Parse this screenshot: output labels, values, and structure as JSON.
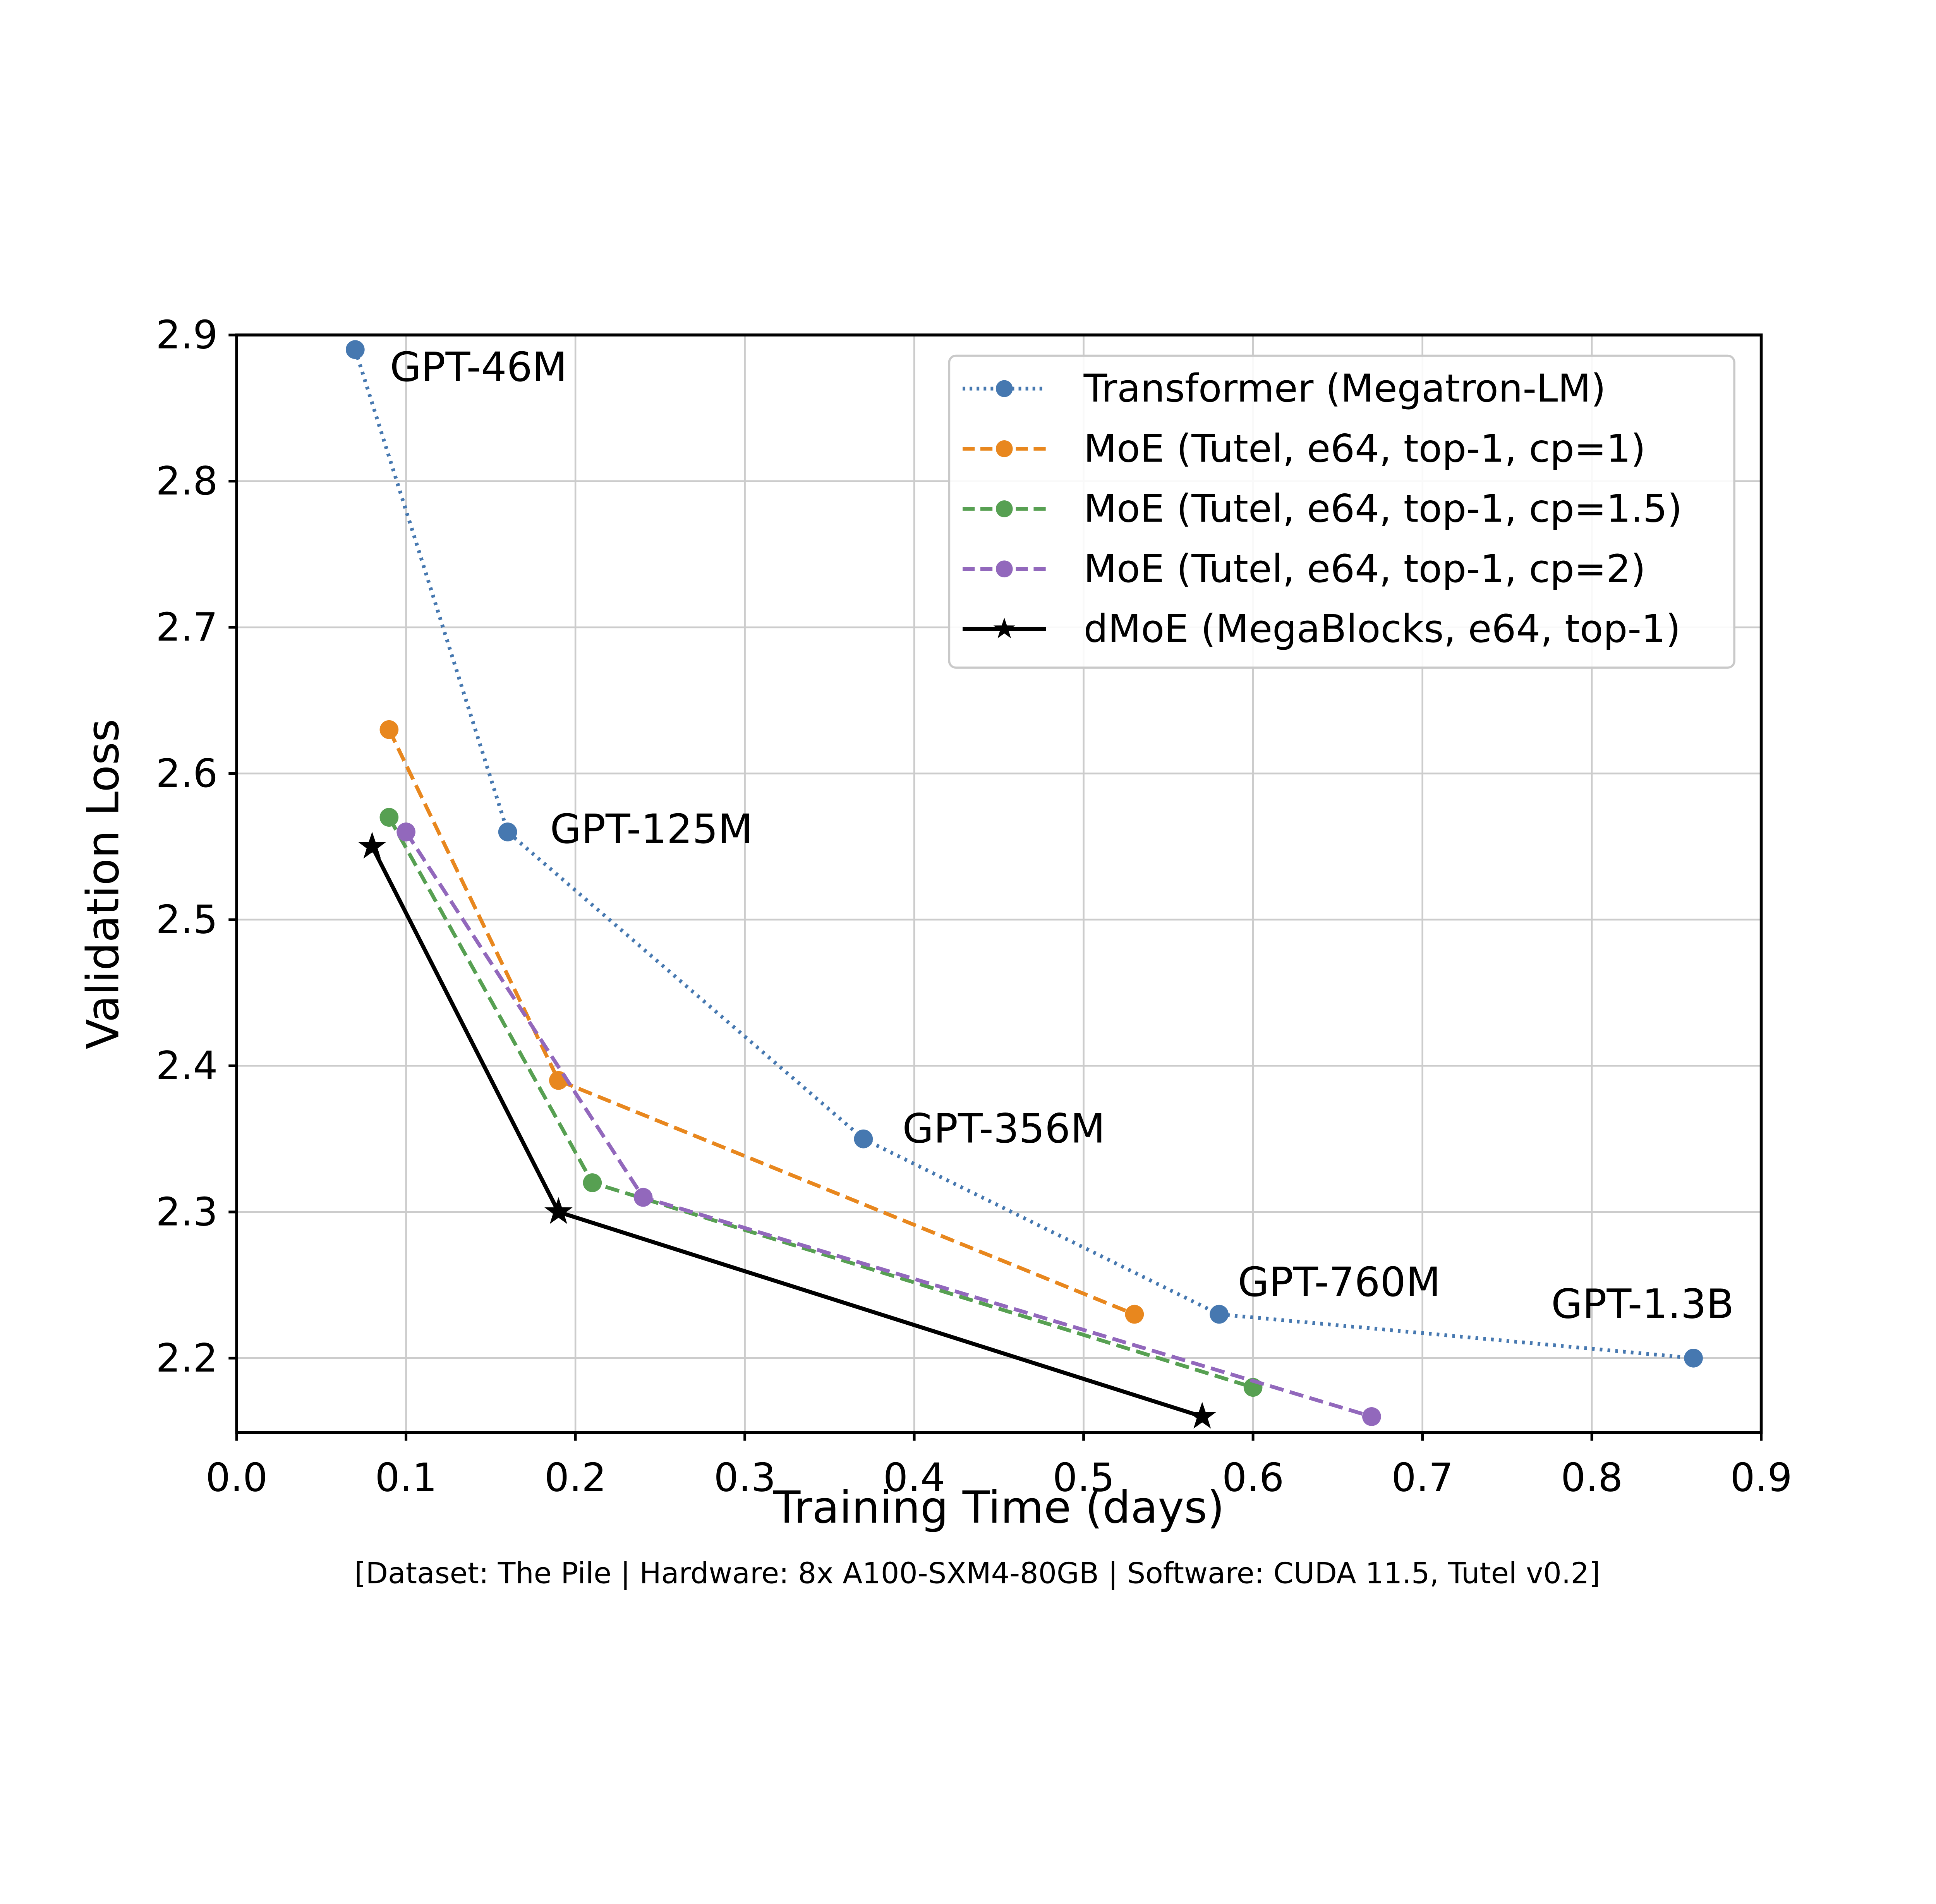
{
  "figure": {
    "background": "#ffffff"
  },
  "chart_data": {
    "type": "line",
    "title": "",
    "xlabel": "Training Time (days)",
    "ylabel": "Validation Loss",
    "caption": "[Dataset: The Pile | Hardware: 8x A100-SXM4-80GB | Software: CUDA 11.5, Tutel v0.2]",
    "xlim": [
      0.0,
      0.9
    ],
    "ylim": [
      2.149,
      2.9
    ],
    "xticks": [
      0.0,
      0.1,
      0.2,
      0.3,
      0.4,
      0.5,
      0.6,
      0.7,
      0.8,
      0.9
    ],
    "yticks": [
      2.2,
      2.3,
      2.4,
      2.5,
      2.6,
      2.7,
      2.8,
      2.9
    ],
    "grid": true,
    "grid_color": "#cccccc",
    "axis_color": "#000000",
    "legend_position": "upper right",
    "series": [
      {
        "name": "Transformer (Megatron-LM)",
        "slug": "transformer-megatron-lm",
        "color": "#4678b0",
        "linestyle": "dotted",
        "marker": "circle",
        "points": [
          [
            0.07,
            2.89
          ],
          [
            0.16,
            2.56
          ],
          [
            0.37,
            2.35
          ],
          [
            0.58,
            2.23
          ],
          [
            0.86,
            2.2
          ]
        ]
      },
      {
        "name": "MoE (Tutel, e64, top-1, cp=1)",
        "slug": "moe-tutel-e64-top1-cp1",
        "color": "#e8871e",
        "linestyle": "dashed",
        "marker": "circle",
        "points": [
          [
            0.09,
            2.63
          ],
          [
            0.19,
            2.39
          ],
          [
            0.53,
            2.23
          ]
        ]
      },
      {
        "name": "MoE (Tutel, e64, top-1, cp=1.5)",
        "slug": "moe-tutel-e64-top1-cp1-5",
        "color": "#57a052",
        "linestyle": "dashed",
        "marker": "circle",
        "points": [
          [
            0.09,
            2.57
          ],
          [
            0.21,
            2.32
          ],
          [
            0.6,
            2.18
          ]
        ]
      },
      {
        "name": "MoE (Tutel, e64, top-1, cp=2)",
        "slug": "moe-tutel-e64-top1-cp2",
        "color": "#9268bc",
        "linestyle": "dashed",
        "marker": "circle",
        "points": [
          [
            0.1,
            2.56
          ],
          [
            0.24,
            2.31
          ],
          [
            0.67,
            2.16
          ]
        ]
      },
      {
        "name": "dMoE (MegaBlocks, e64, top-1)",
        "slug": "dmoe-megablocks-e64-top1",
        "color": "#000000",
        "linestyle": "solid",
        "marker": "star",
        "points": [
          [
            0.08,
            2.55
          ],
          [
            0.19,
            2.3
          ],
          [
            0.57,
            2.16
          ]
        ]
      }
    ],
    "annotations": [
      {
        "text": "GPT-46M",
        "x": 0.0905,
        "y": 2.878
      },
      {
        "text": "GPT-125M",
        "x": 0.185,
        "y": 2.562
      },
      {
        "text": "GPT-356M",
        "x": 0.393,
        "y": 2.357
      },
      {
        "text": "GPT-760M",
        "x": 0.591,
        "y": 2.252
      },
      {
        "text": "GPT-1.3B",
        "x": 0.776,
        "y": 2.237
      }
    ]
  }
}
